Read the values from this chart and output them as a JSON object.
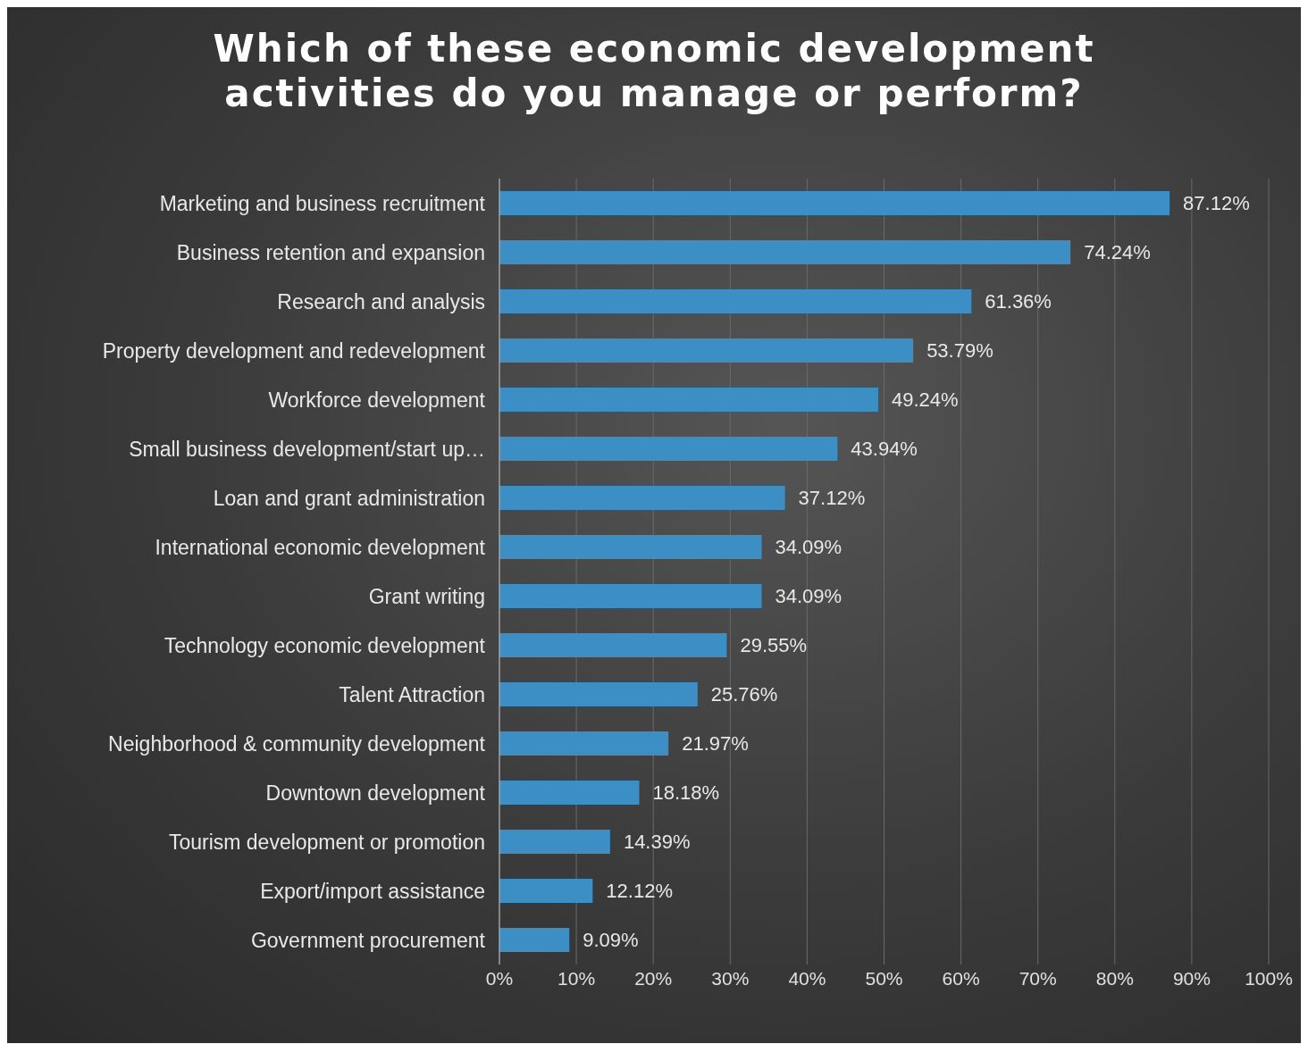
{
  "chart_data": {
    "type": "bar",
    "orientation": "horizontal",
    "title": "Which of these economic development activities do you manage or perform?",
    "categories": [
      "Marketing and business recruitment",
      "Business retention and expansion",
      "Research and analysis",
      "Property development and redevelopment",
      "Workforce development",
      "Small business development/start up…",
      "Loan and grant administration",
      "International economic development",
      "Grant writing",
      "Technology economic development",
      "Talent Attraction",
      "Neighborhood & community development",
      "Downtown development",
      "Tourism development or promotion",
      "Export/import assistance",
      "Government procurement"
    ],
    "values": [
      87.12,
      74.24,
      61.36,
      53.79,
      49.24,
      43.94,
      37.12,
      34.09,
      34.09,
      29.55,
      25.76,
      21.97,
      18.18,
      14.39,
      12.12,
      9.09
    ],
    "value_labels": [
      "87.12%",
      "74.24%",
      "61.36%",
      "53.79%",
      "49.24%",
      "43.94%",
      "37.12%",
      "34.09%",
      "34.09%",
      "29.55%",
      "25.76%",
      "21.97%",
      "18.18%",
      "14.39%",
      "12.12%",
      "9.09%"
    ],
    "color": "#3b8fc4",
    "xlim": [
      0,
      100
    ],
    "xticks": [
      {
        "value": 0,
        "label": "0%"
      },
      {
        "value": 10,
        "label": "10%"
      },
      {
        "value": 20,
        "label": "20%"
      },
      {
        "value": 30,
        "label": "30%"
      },
      {
        "value": 40,
        "label": "40%"
      },
      {
        "value": 50,
        "label": "50%"
      },
      {
        "value": 60,
        "label": "60%"
      },
      {
        "value": 70,
        "label": "70%"
      },
      {
        "value": 80,
        "label": "80%"
      },
      {
        "value": 90,
        "label": "90%"
      },
      {
        "value": 100,
        "label": "100%"
      }
    ],
    "grid": "x",
    "legend": false
  }
}
